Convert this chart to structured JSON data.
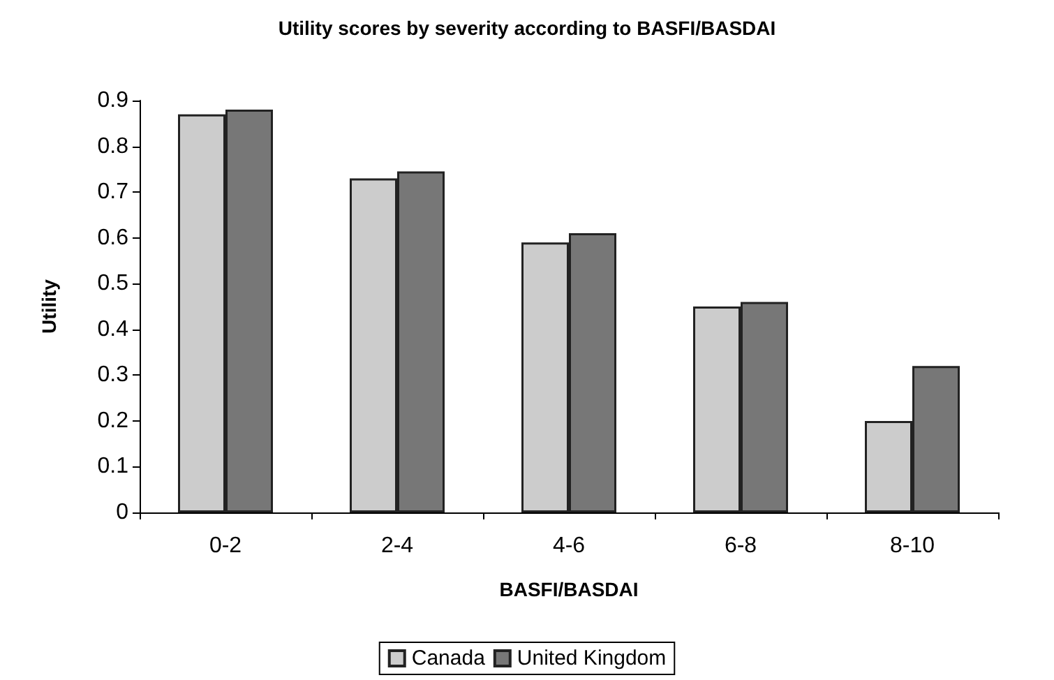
{
  "chart_data": {
    "type": "bar",
    "title": "Utility scores by severity according to BASFI/BASDAI",
    "xlabel": "BASFI/BASDAI",
    "ylabel": "Utility",
    "categories": [
      "0-2",
      "2-4",
      "4-6",
      "6-8",
      "8-10"
    ],
    "series": [
      {
        "name": "Canada",
        "color": "#cccccc",
        "values": [
          0.87,
          0.73,
          0.59,
          0.45,
          0.2
        ]
      },
      {
        "name": "United Kingdom",
        "color": "#777777",
        "values": [
          0.88,
          0.745,
          0.61,
          0.46,
          0.32
        ]
      }
    ],
    "ylim": [
      0,
      0.9
    ],
    "yticks": [
      0,
      0.1,
      0.2,
      0.3,
      0.4,
      0.5,
      0.6,
      0.7,
      0.8,
      0.9
    ],
    "grid": false,
    "legend": "bottom"
  }
}
